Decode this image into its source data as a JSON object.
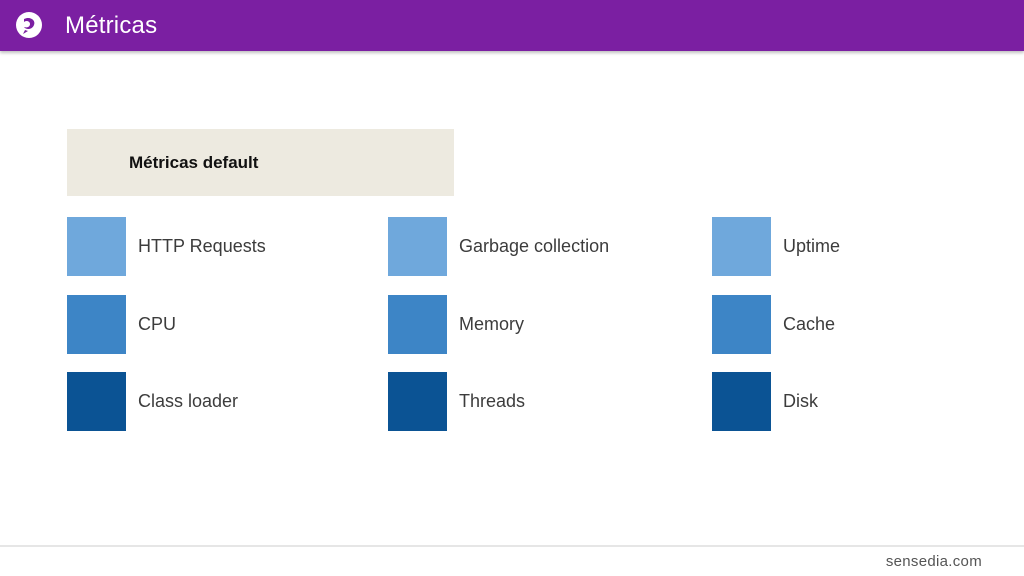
{
  "header": {
    "title": "Métricas",
    "logo_icon": "sensedia-logo-icon"
  },
  "section": {
    "label": "Métricas default"
  },
  "colors": {
    "header_bg": "#7b1fa2",
    "light": "#6fa8dc",
    "mid": "#3d85c6",
    "dark": "#0b5394",
    "section_bg": "#edeae0"
  },
  "metrics": [
    {
      "label": "HTTP Requests",
      "shade": "light"
    },
    {
      "label": "Garbage collection",
      "shade": "light"
    },
    {
      "label": "Uptime",
      "shade": "light"
    },
    {
      "label": "CPU",
      "shade": "mid"
    },
    {
      "label": "Memory",
      "shade": "mid"
    },
    {
      "label": "Cache",
      "shade": "mid"
    },
    {
      "label": "Class loader",
      "shade": "dark"
    },
    {
      "label": "Threads",
      "shade": "dark"
    },
    {
      "label": "Disk",
      "shade": "dark"
    }
  ],
  "footer": {
    "brand": "sensedia.com"
  }
}
